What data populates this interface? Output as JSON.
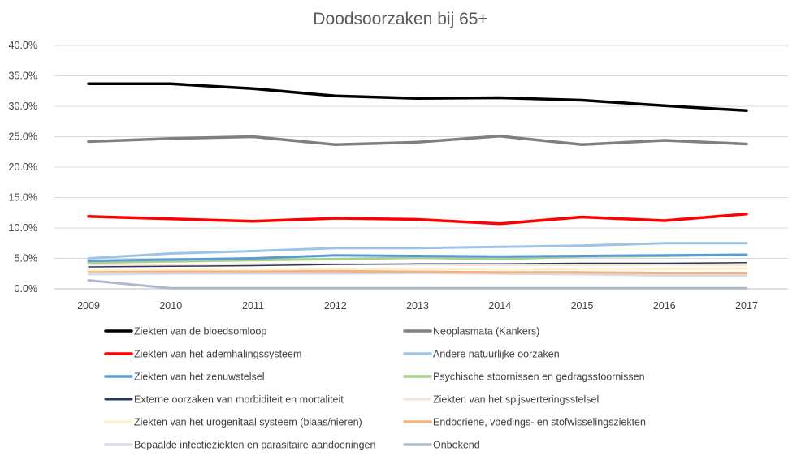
{
  "chart_data": {
    "type": "line",
    "title": "Doodsoorzaken bij 65+",
    "xlabel": "",
    "ylabel": "",
    "ylim": [
      0,
      0.4
    ],
    "y_tick_labels": [
      "0.0%",
      "5.0%",
      "10.0%",
      "15.0%",
      "20.0%",
      "25.0%",
      "30.0%",
      "35.0%",
      "40.0%"
    ],
    "grid": true,
    "legend_position": "bottom",
    "categories": [
      "2009",
      "2010",
      "2011",
      "2012",
      "2013",
      "2014",
      "2015",
      "2016",
      "2017"
    ],
    "series": [
      {
        "name": "Ziekten van de bloedsomloop",
        "color": "#000000",
        "values": [
          0.337,
          0.337,
          0.329,
          0.317,
          0.313,
          0.314,
          0.31,
          0.301,
          0.293
        ]
      },
      {
        "name": "Neoplasmata (Kankers)",
        "color": "#7f7f7f",
        "values": [
          0.242,
          0.247,
          0.25,
          0.237,
          0.241,
          0.251,
          0.237,
          0.244,
          0.238
        ]
      },
      {
        "name": "Ziekten van het ademhalingssysteem",
        "color": "#ff0000",
        "values": [
          0.119,
          0.115,
          0.111,
          0.116,
          0.114,
          0.107,
          0.118,
          0.112,
          0.123
        ]
      },
      {
        "name": "Andere natuurlijke oorzaken",
        "color": "#9dc3e6",
        "values": [
          0.05,
          0.058,
          0.062,
          0.067,
          0.067,
          0.069,
          0.071,
          0.075,
          0.075
        ]
      },
      {
        "name": "Ziekten van het zenuwstelsel",
        "color": "#5b9bd5",
        "values": [
          0.046,
          0.048,
          0.05,
          0.055,
          0.054,
          0.053,
          0.054,
          0.055,
          0.056
        ]
      },
      {
        "name": "Psychische stoornissen en gedragsstoornissen",
        "color": "#a9d18e",
        "values": [
          0.043,
          0.045,
          0.047,
          0.049,
          0.051,
          0.049,
          0.053,
          0.054,
          0.056
        ]
      },
      {
        "name": "Externe oorzaken van morbiditeit en mortaliteit",
        "color": "#1f3864",
        "values": [
          0.036,
          0.037,
          0.038,
          0.04,
          0.041,
          0.041,
          0.042,
          0.042,
          0.043
        ]
      },
      {
        "name": "Ziekten van het spijsverteringsstelsel",
        "color": "#fbe5d6",
        "values": [
          0.04,
          0.039,
          0.04,
          0.041,
          0.04,
          0.039,
          0.039,
          0.04,
          0.039
        ]
      },
      {
        "name": "Ziekten van het urogenitaal systeem (blaas/nieren)",
        "color": "#fff2cc",
        "values": [
          0.031,
          0.032,
          0.032,
          0.033,
          0.033,
          0.032,
          0.033,
          0.033,
          0.034
        ]
      },
      {
        "name": "Endocriene, voedings- en stofwisselingsziekten",
        "color": "#f4b183",
        "values": [
          0.029,
          0.029,
          0.029,
          0.029,
          0.028,
          0.027,
          0.027,
          0.026,
          0.026
        ]
      },
      {
        "name": "Bepaalde infectieziekten en parasitaire aandoeningen",
        "color": "#d6dce5",
        "values": [
          0.024,
          0.025,
          0.025,
          0.025,
          0.026,
          0.025,
          0.024,
          0.022,
          0.022
        ]
      },
      {
        "name": "Onbekend",
        "color": "#adb9ca",
        "values": [
          0.014,
          0.001,
          0.001,
          0.001,
          0.001,
          0.001,
          0.001,
          0.001,
          0.001
        ]
      }
    ]
  }
}
